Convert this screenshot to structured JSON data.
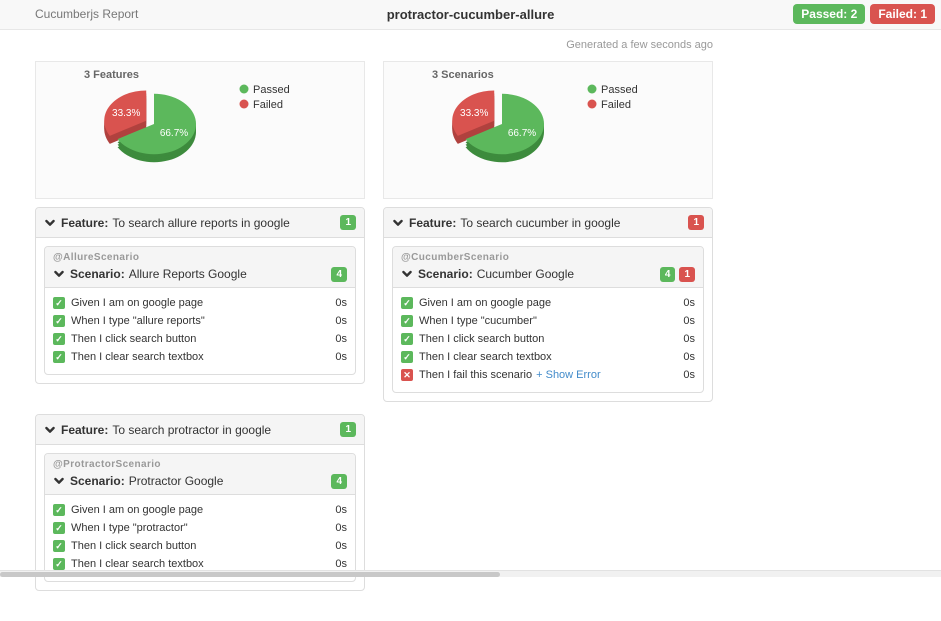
{
  "header": {
    "brand": "Cucumberjs Report",
    "title": "protractor-cucumber-allure",
    "badges": [
      {
        "label": "Passed: 2",
        "status": "passed"
      },
      {
        "label": "Failed: 1",
        "status": "failed"
      }
    ]
  },
  "generated_text": "Generated a few seconds ago",
  "colors": {
    "passed": "#5cb85c",
    "failed": "#d9534f",
    "passed_dark": "#3d8b3d",
    "failed_dark": "#b0413e",
    "link": "#428bca"
  },
  "icons": {
    "passed": "✓",
    "failed": "✕"
  },
  "chart_data": [
    {
      "type": "pie",
      "title": "3 Features",
      "labels": [
        "Passed",
        "Failed"
      ],
      "values": [
        2,
        1
      ],
      "percents": [
        66.7,
        33.3
      ],
      "slice_labels": [
        "66.7%",
        "33.3%"
      ],
      "colors": [
        "#5cb85c",
        "#d9534f"
      ],
      "colors_dark": [
        "#3d8b3d",
        "#b0413e"
      ],
      "exploded_slice": "Failed",
      "legend_position": "right"
    },
    {
      "type": "pie",
      "title": "3 Scenarios",
      "labels": [
        "Passed",
        "Failed"
      ],
      "values": [
        2,
        1
      ],
      "percents": [
        66.7,
        33.3
      ],
      "slice_labels": [
        "66.7%",
        "33.3%"
      ],
      "colors": [
        "#5cb85c",
        "#d9534f"
      ],
      "colors_dark": [
        "#3d8b3d",
        "#b0413e"
      ],
      "exploded_slice": "Failed",
      "legend_position": "right"
    }
  ],
  "features": [
    {
      "label": "Feature:",
      "title": "To search allure reports in google",
      "badges": [
        {
          "count": "1",
          "status": "passed"
        }
      ],
      "column": "left",
      "scenarios": [
        {
          "tag": "@AllureScenario",
          "label": "Scenario:",
          "name": "Allure Reports Google",
          "badges": [
            {
              "count": "4",
              "status": "passed"
            }
          ],
          "steps": [
            {
              "text": "Given I am on google page",
              "duration": "0s",
              "status": "passed"
            },
            {
              "text": "When I type \"allure reports\"",
              "duration": "0s",
              "status": "passed"
            },
            {
              "text": "Then I click search button",
              "duration": "0s",
              "status": "passed"
            },
            {
              "text": "Then I clear search textbox",
              "duration": "0s",
              "status": "passed"
            }
          ]
        }
      ]
    },
    {
      "label": "Feature:",
      "title": "To search cucumber in google",
      "badges": [
        {
          "count": "1",
          "status": "failed"
        }
      ],
      "column": "right",
      "scenarios": [
        {
          "tag": "@CucumberScenario",
          "label": "Scenario:",
          "name": "Cucumber Google",
          "badges": [
            {
              "count": "4",
              "status": "passed"
            },
            {
              "count": "1",
              "status": "failed"
            }
          ],
          "steps": [
            {
              "text": "Given I am on google page",
              "duration": "0s",
              "status": "passed"
            },
            {
              "text": "When I type \"cucumber\"",
              "duration": "0s",
              "status": "passed"
            },
            {
              "text": "Then I click search button",
              "duration": "0s",
              "status": "passed"
            },
            {
              "text": "Then I clear search textbox",
              "duration": "0s",
              "status": "passed"
            },
            {
              "text": "Then I fail this scenario",
              "link": "+ Show Error",
              "duration": "0s",
              "status": "failed"
            }
          ]
        }
      ]
    },
    {
      "label": "Feature:",
      "title": "To search protractor in google",
      "badges": [
        {
          "count": "1",
          "status": "passed"
        }
      ],
      "column": "left",
      "scenarios": [
        {
          "tag": "@ProtractorScenario",
          "label": "Scenario:",
          "name": "Protractor Google",
          "badges": [
            {
              "count": "4",
              "status": "passed"
            }
          ],
          "steps": [
            {
              "text": "Given I am on google page",
              "duration": "0s",
              "status": "passed"
            },
            {
              "text": "When I type \"protractor\"",
              "duration": "0s",
              "status": "passed"
            },
            {
              "text": "Then I click search button",
              "duration": "0s",
              "status": "passed"
            },
            {
              "text": "Then I clear search textbox",
              "duration": "0s",
              "status": "passed"
            }
          ]
        }
      ]
    }
  ]
}
